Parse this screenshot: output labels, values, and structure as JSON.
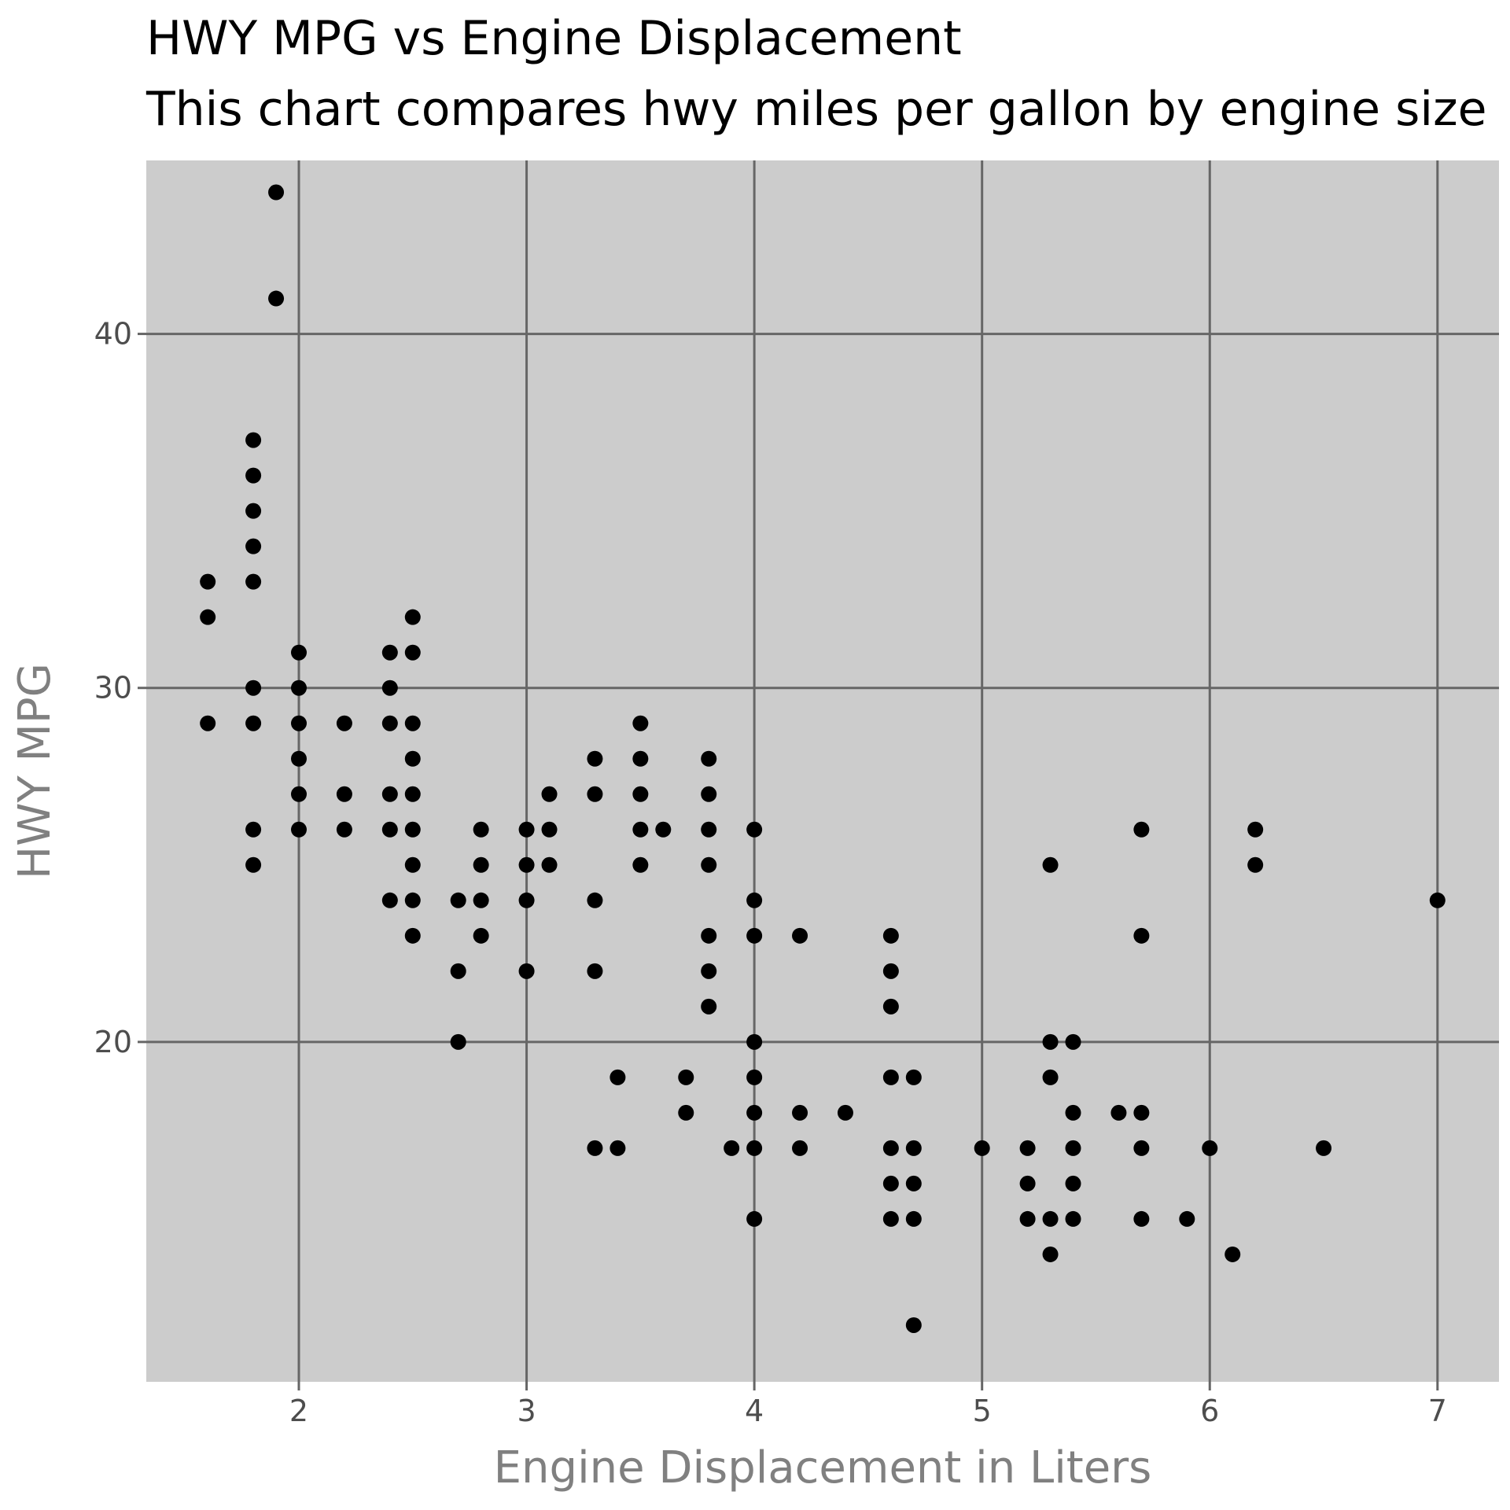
{
  "chart_data": {
    "type": "scatter",
    "title": "HWY MPG vs Engine Displacement",
    "subtitle": "This chart compares hwy miles per gallon by engine size",
    "xlabel": "Engine Displacement in Liters",
    "ylabel": "HWY MPG",
    "xlim": [
      1.33,
      7.27
    ],
    "ylim": [
      10.4,
      44.9
    ],
    "x_ticks": [
      2,
      3,
      4,
      5,
      6,
      7
    ],
    "y_ticks": [
      20,
      30,
      40
    ],
    "grid": true,
    "legend": "none",
    "colors": {
      "panel": "#cccccc",
      "grid": "#666666",
      "point": "#000000",
      "tick_text": "#4d4d4d",
      "axis_title": "#808080"
    },
    "series": [
      {
        "points": [
          [
            1.6,
            33
          ],
          [
            1.6,
            32
          ],
          [
            1.6,
            29
          ],
          [
            1.8,
            37
          ],
          [
            1.8,
            36
          ],
          [
            1.8,
            35
          ],
          [
            1.8,
            34
          ],
          [
            1.8,
            33
          ],
          [
            1.8,
            30
          ],
          [
            1.8,
            29
          ],
          [
            1.8,
            26
          ],
          [
            1.8,
            25
          ],
          [
            1.9,
            44
          ],
          [
            1.9,
            41
          ],
          [
            2.0,
            31
          ],
          [
            2.0,
            30
          ],
          [
            2.0,
            29
          ],
          [
            2.0,
            28
          ],
          [
            2.0,
            27
          ],
          [
            2.0,
            26
          ],
          [
            2.2,
            29
          ],
          [
            2.2,
            27
          ],
          [
            2.2,
            26
          ],
          [
            2.4,
            31
          ],
          [
            2.4,
            30
          ],
          [
            2.4,
            29
          ],
          [
            2.4,
            27
          ],
          [
            2.4,
            26
          ],
          [
            2.4,
            24
          ],
          [
            2.5,
            32
          ],
          [
            2.5,
            31
          ],
          [
            2.5,
            29
          ],
          [
            2.5,
            28
          ],
          [
            2.5,
            27
          ],
          [
            2.5,
            26
          ],
          [
            2.5,
            25
          ],
          [
            2.5,
            24
          ],
          [
            2.5,
            23
          ],
          [
            2.7,
            24
          ],
          [
            2.7,
            22
          ],
          [
            2.7,
            20
          ],
          [
            2.8,
            26
          ],
          [
            2.8,
            25
          ],
          [
            2.8,
            24
          ],
          [
            2.8,
            23
          ],
          [
            3.0,
            26
          ],
          [
            3.0,
            25
          ],
          [
            3.0,
            24
          ],
          [
            3.0,
            22
          ],
          [
            3.1,
            27
          ],
          [
            3.1,
            26
          ],
          [
            3.1,
            25
          ],
          [
            3.3,
            28
          ],
          [
            3.3,
            27
          ],
          [
            3.3,
            24
          ],
          [
            3.3,
            22
          ],
          [
            3.3,
            17
          ],
          [
            3.4,
            19
          ],
          [
            3.4,
            17
          ],
          [
            3.5,
            29
          ],
          [
            3.5,
            28
          ],
          [
            3.5,
            27
          ],
          [
            3.5,
            26
          ],
          [
            3.5,
            25
          ],
          [
            3.6,
            26
          ],
          [
            3.7,
            19
          ],
          [
            3.7,
            18
          ],
          [
            3.8,
            28
          ],
          [
            3.8,
            27
          ],
          [
            3.8,
            26
          ],
          [
            3.8,
            25
          ],
          [
            3.8,
            23
          ],
          [
            3.8,
            22
          ],
          [
            3.8,
            21
          ],
          [
            3.9,
            17
          ],
          [
            4.0,
            26
          ],
          [
            4.0,
            24
          ],
          [
            4.0,
            23
          ],
          [
            4.0,
            20
          ],
          [
            4.0,
            19
          ],
          [
            4.0,
            18
          ],
          [
            4.0,
            17
          ],
          [
            4.0,
            15
          ],
          [
            4.2,
            23
          ],
          [
            4.2,
            18
          ],
          [
            4.2,
            17
          ],
          [
            4.4,
            18
          ],
          [
            4.6,
            23
          ],
          [
            4.6,
            22
          ],
          [
            4.6,
            21
          ],
          [
            4.6,
            19
          ],
          [
            4.6,
            17
          ],
          [
            4.6,
            16
          ],
          [
            4.6,
            15
          ],
          [
            4.7,
            19
          ],
          [
            4.7,
            17
          ],
          [
            4.7,
            16
          ],
          [
            4.7,
            15
          ],
          [
            4.7,
            12
          ],
          [
            5.0,
            17
          ],
          [
            5.2,
            17
          ],
          [
            5.2,
            16
          ],
          [
            5.2,
            15
          ],
          [
            5.3,
            25
          ],
          [
            5.3,
            20
          ],
          [
            5.3,
            19
          ],
          [
            5.3,
            15
          ],
          [
            5.3,
            14
          ],
          [
            5.4,
            20
          ],
          [
            5.4,
            18
          ],
          [
            5.4,
            17
          ],
          [
            5.4,
            16
          ],
          [
            5.4,
            15
          ],
          [
            5.6,
            18
          ],
          [
            5.7,
            26
          ],
          [
            5.7,
            23
          ],
          [
            5.7,
            18
          ],
          [
            5.7,
            17
          ],
          [
            5.7,
            15
          ],
          [
            5.9,
            15
          ],
          [
            6.0,
            17
          ],
          [
            6.1,
            14
          ],
          [
            6.2,
            26
          ],
          [
            6.2,
            25
          ],
          [
            6.5,
            17
          ],
          [
            7.0,
            24
          ]
        ]
      }
    ]
  }
}
